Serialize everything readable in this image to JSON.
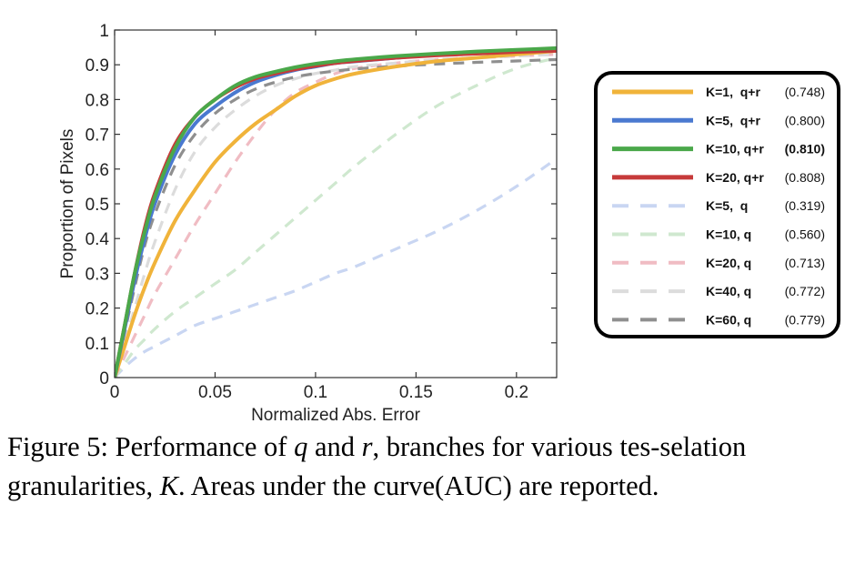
{
  "chart_data": {
    "type": "line",
    "xlabel": "Normalized Abs. Error",
    "ylabel": "Proportion of Pixels",
    "xlim": [
      0,
      0.22
    ],
    "ylim": [
      0,
      1
    ],
    "x_ticks": [
      {
        "value": 0,
        "label": "0"
      },
      {
        "value": 0.05,
        "label": "0.05"
      },
      {
        "value": 0.1,
        "label": "0.1"
      },
      {
        "value": 0.15,
        "label": "0.15"
      },
      {
        "value": 0.2,
        "label": "0.2"
      }
    ],
    "y_ticks": [
      {
        "value": 0,
        "label": "0"
      },
      {
        "value": 0.1,
        "label": "0.1"
      },
      {
        "value": 0.2,
        "label": "0.2"
      },
      {
        "value": 0.3,
        "label": "0.3"
      },
      {
        "value": 0.4,
        "label": "0.4"
      },
      {
        "value": 0.5,
        "label": "0.5"
      },
      {
        "value": 0.6,
        "label": "0.6"
      },
      {
        "value": 0.7,
        "label": "0.7"
      },
      {
        "value": 0.8,
        "label": "0.8"
      },
      {
        "value": 0.9,
        "label": "0.9"
      },
      {
        "value": 1,
        "label": "1"
      }
    ],
    "grid": false,
    "legend_position": "right",
    "x": [
      0,
      0.005,
      0.01,
      0.015,
      0.02,
      0.03,
      0.04,
      0.05,
      0.06,
      0.07,
      0.08,
      0.09,
      0.1,
      0.11,
      0.12,
      0.14,
      0.16,
      0.18,
      0.2,
      0.22
    ],
    "series": [
      {
        "name": "K=1,  q+r",
        "auc": "(0.748)",
        "color": "#f0b33a",
        "dashed": false,
        "faint": false,
        "values": [
          0,
          0.09,
          0.18,
          0.26,
          0.33,
          0.45,
          0.54,
          0.62,
          0.68,
          0.73,
          0.77,
          0.81,
          0.84,
          0.86,
          0.875,
          0.895,
          0.91,
          0.92,
          0.93,
          0.94
        ]
      },
      {
        "name": "K=5,  q+r",
        "auc": "(0.800)",
        "color": "#4a79d0",
        "dashed": false,
        "faint": false,
        "values": [
          0,
          0.14,
          0.28,
          0.4,
          0.5,
          0.64,
          0.73,
          0.78,
          0.82,
          0.85,
          0.87,
          0.885,
          0.895,
          0.905,
          0.91,
          0.92,
          0.93,
          0.935,
          0.94,
          0.945
        ]
      },
      {
        "name": "K=10, q+r",
        "auc": "(0.810)",
        "auc_bold": true,
        "color": "#4aa84a",
        "dashed": false,
        "faint": false,
        "values": [
          0,
          0.15,
          0.3,
          0.42,
          0.52,
          0.66,
          0.75,
          0.8,
          0.84,
          0.865,
          0.88,
          0.893,
          0.903,
          0.91,
          0.916,
          0.925,
          0.932,
          0.938,
          0.943,
          0.948
        ]
      },
      {
        "name": "K=20, q+r",
        "auc": "(0.808)",
        "color": "#c63a3a",
        "dashed": false,
        "faint": false,
        "values": [
          0,
          0.15,
          0.3,
          0.43,
          0.53,
          0.67,
          0.75,
          0.8,
          0.835,
          0.86,
          0.875,
          0.887,
          0.897,
          0.905,
          0.911,
          0.92,
          0.927,
          0.932,
          0.937,
          0.94
        ]
      },
      {
        "name": "K=5,  q",
        "auc": "(0.319)",
        "color": "#c9d6f2",
        "dashed": true,
        "faint": true,
        "values": [
          0,
          0.03,
          0.055,
          0.075,
          0.09,
          0.12,
          0.15,
          0.17,
          0.19,
          0.21,
          0.23,
          0.25,
          0.275,
          0.3,
          0.32,
          0.37,
          0.42,
          0.48,
          0.55,
          0.63
        ]
      },
      {
        "name": "K=10, q",
        "auc": "(0.560)",
        "color": "#cfe8cf",
        "dashed": true,
        "faint": true,
        "values": [
          0,
          0.04,
          0.08,
          0.11,
          0.14,
          0.19,
          0.23,
          0.27,
          0.31,
          0.36,
          0.41,
          0.46,
          0.51,
          0.56,
          0.61,
          0.7,
          0.78,
          0.84,
          0.89,
          0.92
        ]
      },
      {
        "name": "K=20, q",
        "auc": "(0.713)",
        "color": "#f0bcc3",
        "dashed": true,
        "faint": true,
        "values": [
          0,
          0.06,
          0.12,
          0.18,
          0.24,
          0.34,
          0.44,
          0.53,
          0.62,
          0.7,
          0.77,
          0.82,
          0.85,
          0.875,
          0.89,
          0.905,
          0.915,
          0.92,
          0.925,
          0.93
        ]
      },
      {
        "name": "K=40, q",
        "auc": "(0.772)",
        "color": "#dcdcdc",
        "dashed": true,
        "faint": true,
        "values": [
          0,
          0.1,
          0.2,
          0.3,
          0.39,
          0.54,
          0.65,
          0.72,
          0.77,
          0.81,
          0.84,
          0.86,
          0.875,
          0.885,
          0.895,
          0.905,
          0.915,
          0.92,
          0.925,
          0.93
        ]
      },
      {
        "name": "K=60, q",
        "auc": "(0.779)",
        "color": "#8f8f8f",
        "dashed": true,
        "faint": false,
        "values": [
          0,
          0.13,
          0.26,
          0.38,
          0.47,
          0.61,
          0.7,
          0.76,
          0.8,
          0.83,
          0.85,
          0.865,
          0.875,
          0.882,
          0.888,
          0.896,
          0.902,
          0.907,
          0.911,
          0.915
        ]
      }
    ]
  },
  "caption": {
    "label": "Figure 5:",
    "text_1": " Performance of ",
    "var_q": "q",
    "text_2": " and ",
    "var_r": "r",
    "text_3": ", branches for various tes-selation granularities, ",
    "var_K": "K",
    "text_4": ".  Areas under the curve(AUC) are reported."
  }
}
